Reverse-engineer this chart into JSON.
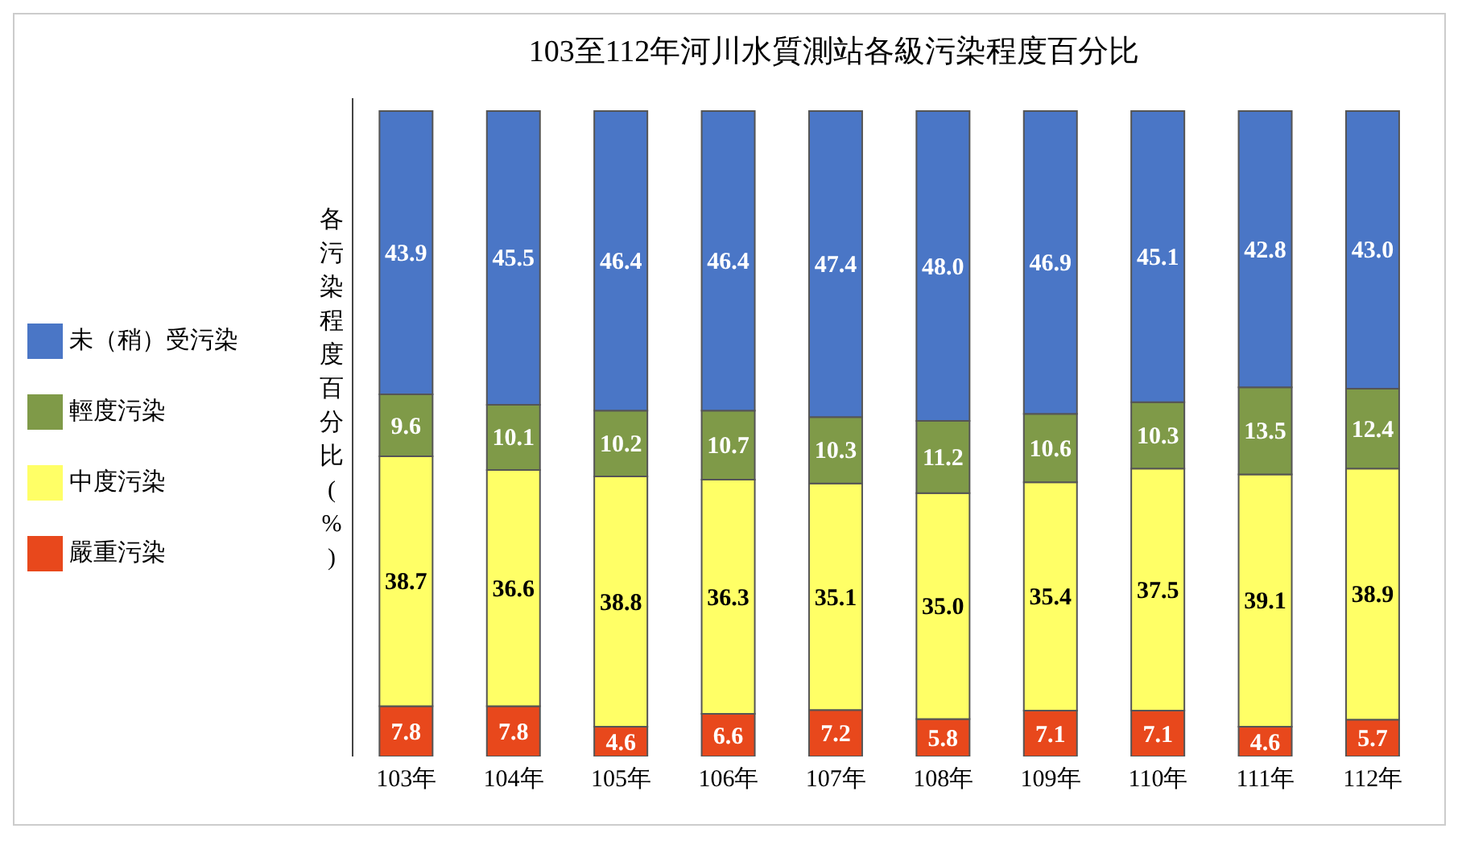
{
  "chart_data": {
    "type": "bar",
    "title": "103至112年河川水質測站各級污染程度百分比",
    "ylabel": "各污染程度百分比(%)",
    "stacked": true,
    "legend": "left",
    "categories": [
      "103年",
      "104年",
      "105年",
      "106年",
      "107年",
      "108年",
      "109年",
      "110年",
      "111年",
      "112年"
    ],
    "series": [
      {
        "name": "嚴重污染",
        "color": "#e8481c",
        "values": [
          7.8,
          7.8,
          4.6,
          6.6,
          7.2,
          5.8,
          7.1,
          7.1,
          4.6,
          5.7
        ],
        "value_labels": [
          "7.8",
          "7.8",
          "4.6",
          "6.6",
          "7.2",
          "5.8",
          "7.1",
          "7.1",
          "4.6",
          "5.7"
        ]
      },
      {
        "name": "中度污染",
        "color": "#ffff66",
        "values": [
          38.7,
          36.6,
          38.8,
          36.3,
          35.1,
          35.0,
          35.4,
          37.5,
          39.1,
          38.9
        ],
        "value_labels": [
          "38.7",
          "36.6",
          "38.8",
          "36.3",
          "35.1",
          "35.0",
          "35.4",
          "37.5",
          "39.1",
          "38.9"
        ]
      },
      {
        "name": "輕度污染",
        "color": "#7f9a48",
        "values": [
          9.6,
          10.1,
          10.2,
          10.7,
          10.3,
          11.2,
          10.6,
          10.3,
          13.5,
          12.4
        ],
        "value_labels": [
          "9.6",
          "10.1",
          "10.2",
          "10.7",
          "10.3",
          "11.2",
          "10.6",
          "10.3",
          "13.5",
          "12.4"
        ]
      },
      {
        "name": "未（稍）受污染",
        "color": "#4a76c6",
        "values": [
          43.9,
          45.5,
          46.4,
          46.4,
          47.4,
          48.0,
          46.9,
          45.1,
          42.8,
          43.0
        ],
        "value_labels": [
          "43.9",
          "45.5",
          "46.4",
          "46.4",
          "47.4",
          "48.0",
          "46.9",
          "45.1",
          "42.8",
          "43.0"
        ]
      }
    ]
  }
}
